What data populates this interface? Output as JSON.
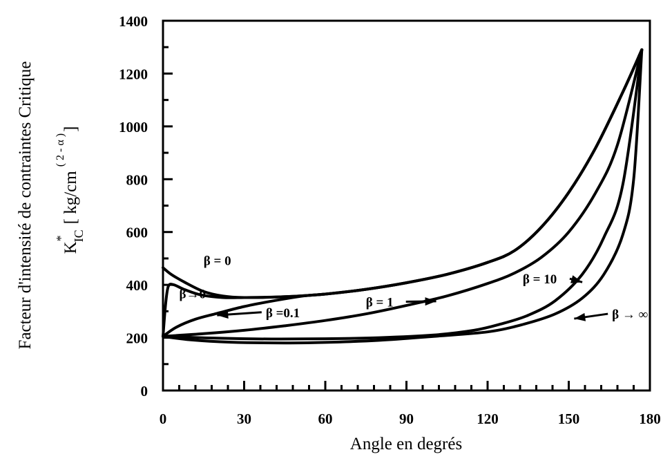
{
  "chart_data": {
    "type": "line",
    "xlabel": "Angle en degrés",
    "ylabel": {
      "title": "Facteur d'intensité de contraintes Critique",
      "symbol": "K",
      "superscript_star": "*",
      "subscript": "IC",
      "open_bracket": "[ kg/cm",
      "exponent": "( 2 - α )",
      "close_bracket": "]"
    },
    "xlim": [
      0,
      180
    ],
    "ylim": [
      0,
      1400
    ],
    "xticks": [
      {
        "value": 0,
        "label": "0"
      },
      {
        "value": 30,
        "label": "30"
      },
      {
        "value": 60,
        "label": "60"
      },
      {
        "value": 90,
        "label": "90"
      },
      {
        "value": 120,
        "label": "120"
      },
      {
        "value": 150,
        "label": "150"
      },
      {
        "value": 180,
        "label": "180"
      }
    ],
    "yticks": [
      {
        "value": 0,
        "label": "0"
      },
      {
        "value": 200,
        "label": "200"
      },
      {
        "value": 400,
        "label": "400"
      },
      {
        "value": 600,
        "label": "600"
      },
      {
        "value": 800,
        "label": "800"
      },
      {
        "value": 1000,
        "label": "1000"
      },
      {
        "value": 1200,
        "label": "1200"
      },
      {
        "value": 1400,
        "label": "1400"
      }
    ],
    "grid": false,
    "series": [
      {
        "name": "β = 0",
        "points": [
          [
            0,
            465
          ],
          [
            3,
            440
          ],
          [
            8,
            410
          ],
          [
            15,
            375
          ],
          [
            22,
            358
          ],
          [
            30,
            352
          ],
          [
            45,
            355
          ],
          [
            60,
            365
          ],
          [
            75,
            383
          ],
          [
            90,
            408
          ],
          [
            105,
            440
          ],
          [
            120,
            485
          ],
          [
            130,
            530
          ],
          [
            140,
            620
          ],
          [
            150,
            750
          ],
          [
            160,
            920
          ],
          [
            170,
            1130
          ],
          [
            177,
            1290
          ]
        ]
      },
      {
        "name": "β→0",
        "points": [
          [
            0,
            205
          ],
          [
            1,
            330
          ],
          [
            2,
            395
          ],
          [
            4,
            400
          ],
          [
            8,
            382
          ],
          [
            14,
            362
          ],
          [
            22,
            352
          ],
          [
            30,
            352
          ],
          [
            45,
            355
          ],
          [
            60,
            365
          ],
          [
            75,
            383
          ],
          [
            90,
            408
          ],
          [
            105,
            440
          ],
          [
            120,
            485
          ],
          [
            130,
            530
          ],
          [
            140,
            620
          ],
          [
            150,
            750
          ],
          [
            160,
            920
          ],
          [
            170,
            1130
          ],
          [
            177,
            1290
          ]
        ]
      },
      {
        "name": "β =0.1",
        "points": [
          [
            0,
            205
          ],
          [
            5,
            240
          ],
          [
            12,
            270
          ],
          [
            20,
            292
          ],
          [
            30,
            318
          ],
          [
            40,
            338
          ],
          [
            52,
            358
          ],
          [
            60,
            365
          ],
          [
            75,
            383
          ],
          [
            90,
            408
          ],
          [
            105,
            440
          ],
          [
            120,
            485
          ],
          [
            130,
            530
          ],
          [
            140,
            620
          ],
          [
            150,
            750
          ],
          [
            160,
            920
          ],
          [
            170,
            1130
          ],
          [
            177,
            1290
          ]
        ]
      },
      {
        "name": "β = 1",
        "points": [
          [
            0,
            205
          ],
          [
            15,
            215
          ],
          [
            30,
            228
          ],
          [
            45,
            245
          ],
          [
            60,
            265
          ],
          [
            75,
            290
          ],
          [
            90,
            322
          ],
          [
            105,
            358
          ],
          [
            120,
            405
          ],
          [
            130,
            445
          ],
          [
            140,
            505
          ],
          [
            150,
            600
          ],
          [
            160,
            750
          ],
          [
            168,
            930
          ],
          [
            177,
            1290
          ]
        ]
      },
      {
        "name": "β = 10",
        "points": [
          [
            0,
            205
          ],
          [
            20,
            198
          ],
          [
            40,
            195
          ],
          [
            60,
            196
          ],
          [
            80,
            200
          ],
          [
            100,
            210
          ],
          [
            115,
            228
          ],
          [
            125,
            252
          ],
          [
            135,
            285
          ],
          [
            145,
            340
          ],
          [
            155,
            440
          ],
          [
            163,
            580
          ],
          [
            170,
            780
          ],
          [
            177,
            1290
          ]
        ]
      },
      {
        "name": "β → ∞",
        "points": [
          [
            0,
            205
          ],
          [
            10,
            192
          ],
          [
            25,
            183
          ],
          [
            45,
            180
          ],
          [
            60,
            182
          ],
          [
            80,
            190
          ],
          [
            100,
            205
          ],
          [
            120,
            222
          ],
          [
            133,
            250
          ],
          [
            145,
            290
          ],
          [
            155,
            350
          ],
          [
            163,
            440
          ],
          [
            170,
            590
          ],
          [
            174,
            800
          ],
          [
            177,
            1290
          ]
        ]
      }
    ],
    "annotations": [
      {
        "text": "β = 0",
        "at": [
          15,
          475
        ]
      },
      {
        "text": "β→0",
        "at": [
          6,
          350
        ]
      },
      {
        "text": "β =0.1",
        "at": [
          38,
          278
        ],
        "arrow_to": [
          20,
          285
        ]
      },
      {
        "text": "β = 1",
        "at": [
          75,
          318
        ],
        "arrow_to": [
          101,
          338
        ]
      },
      {
        "text": "β = 10",
        "at": [
          133,
          405
        ],
        "arrow_to": [
          155,
          410
        ]
      },
      {
        "text": "β → ∞",
        "at": [
          166,
          272
        ],
        "arrow_to": [
          152,
          272
        ]
      }
    ]
  }
}
